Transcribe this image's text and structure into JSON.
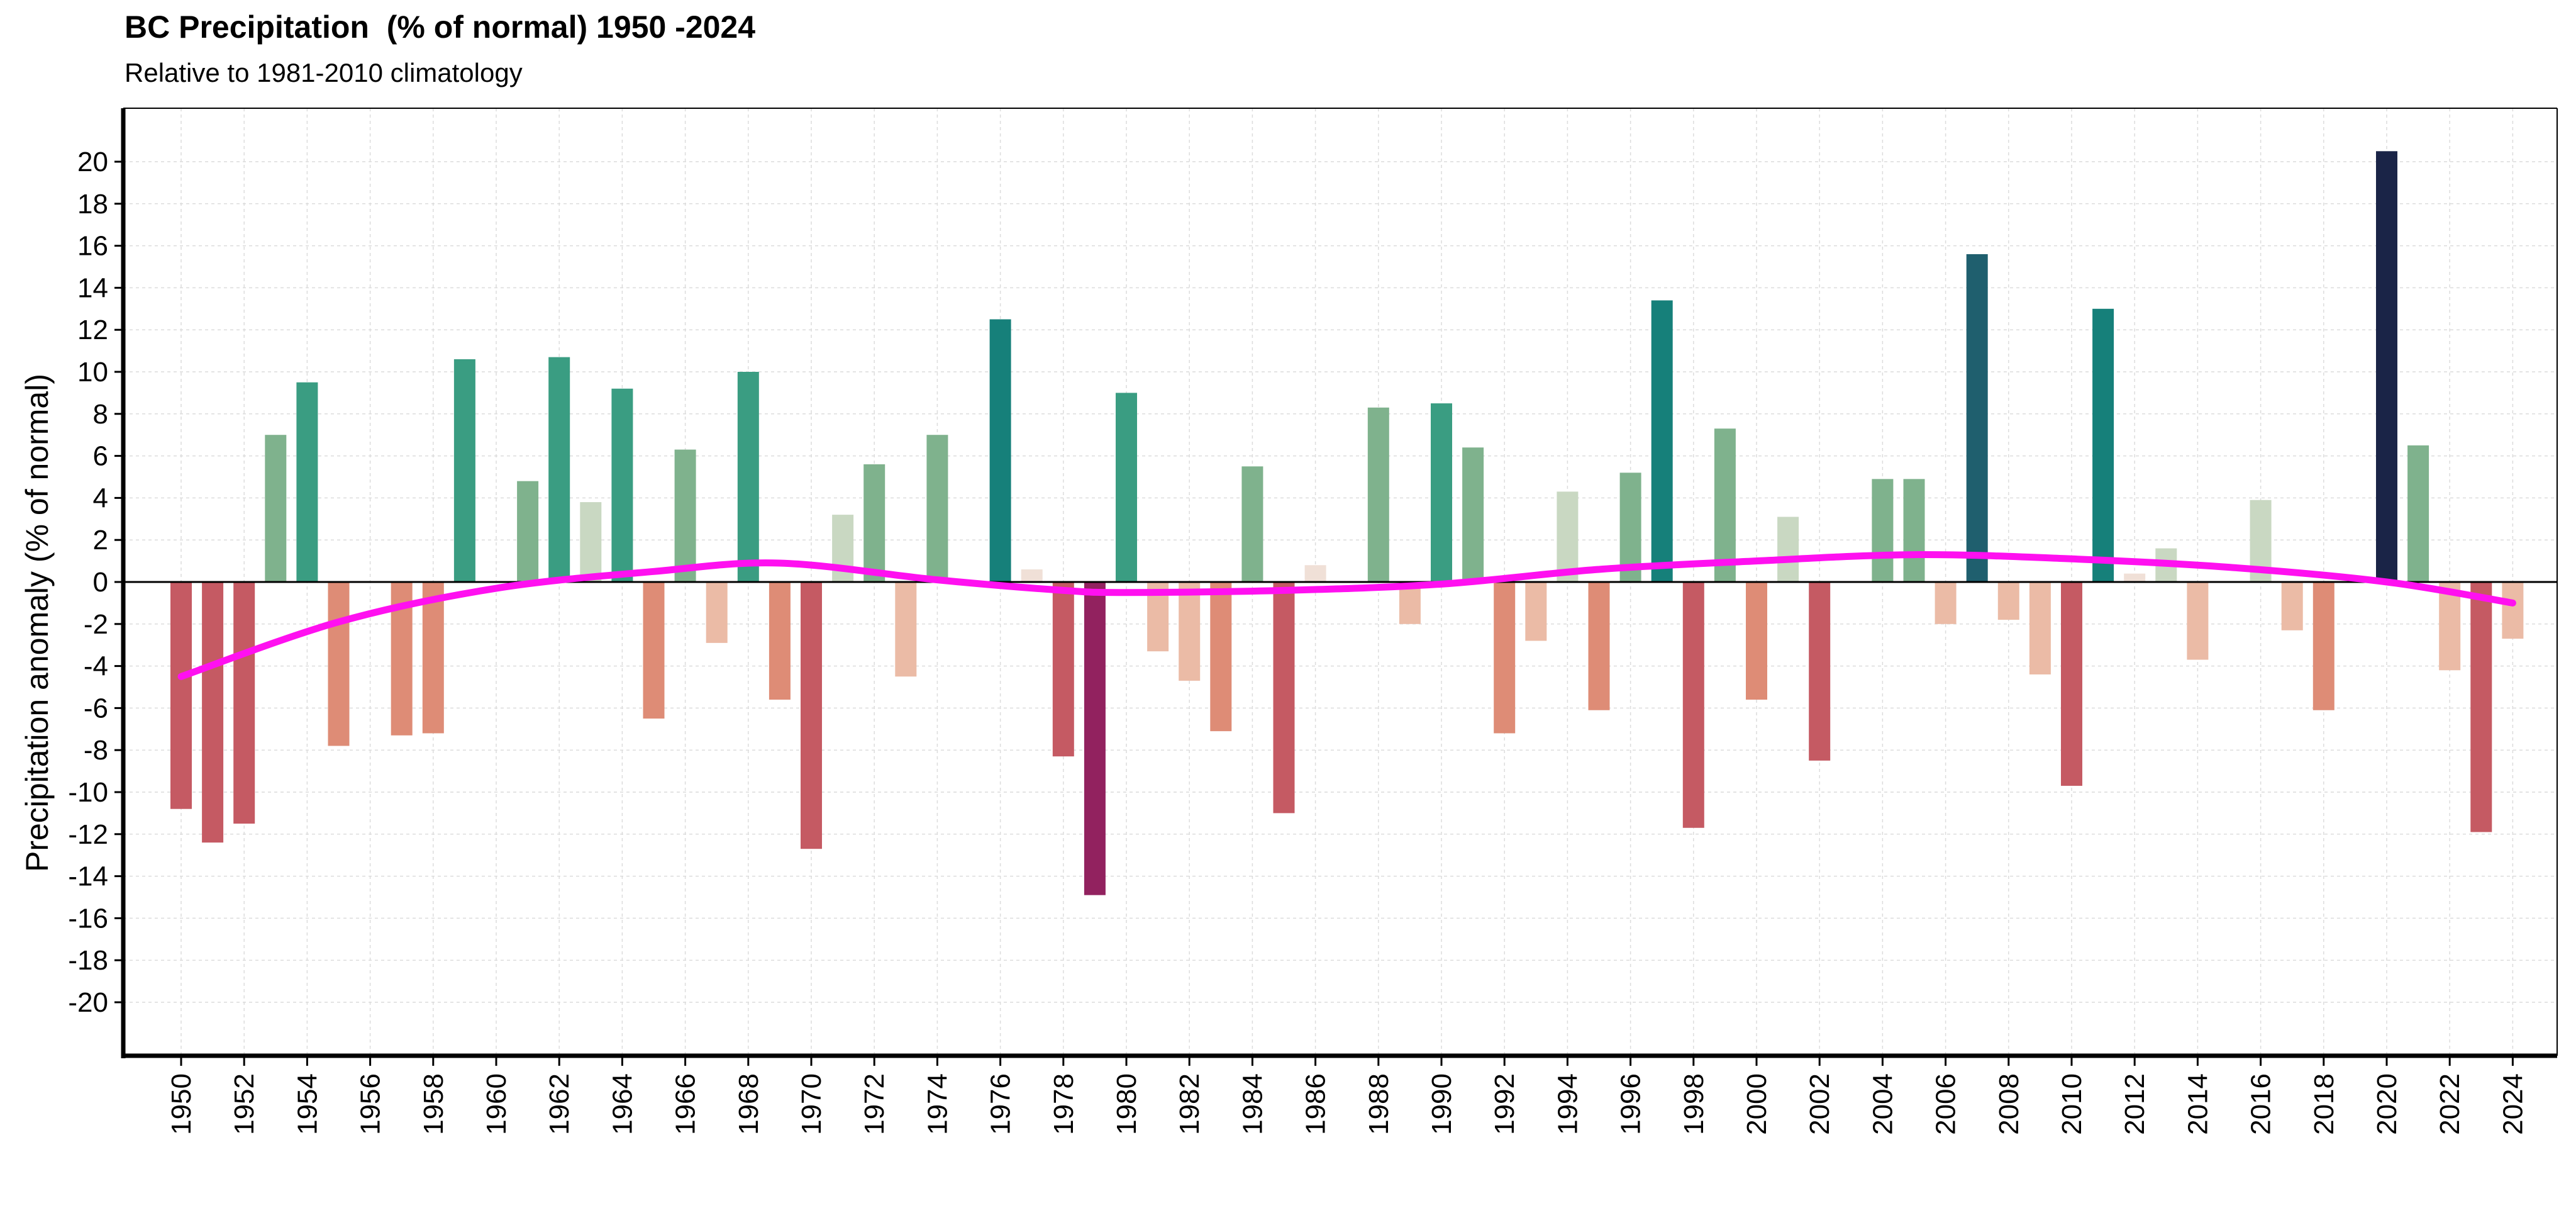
{
  "chart_data": {
    "type": "bar",
    "title": "BC Precipitation  (% of normal) 1950 -2024",
    "subtitle": "Relative to 1981-2010 climatology",
    "xlabel": "",
    "ylabel": "Precipitation anomaly (% of normal)",
    "ylim": [
      -22.5,
      22.5
    ],
    "yticks": [
      20,
      18,
      16,
      14,
      12,
      10,
      8,
      6,
      4,
      2,
      0,
      -2,
      -4,
      -6,
      -8,
      -10,
      -12,
      -14,
      -16,
      -18,
      -20
    ],
    "xticks": [
      1950,
      1952,
      1954,
      1956,
      1958,
      1960,
      1962,
      1964,
      1966,
      1968,
      1970,
      1972,
      1974,
      1976,
      1978,
      1980,
      1982,
      1984,
      1986,
      1988,
      1990,
      1992,
      1994,
      1996,
      1998,
      2000,
      2002,
      2004,
      2006,
      2008,
      2010,
      2012,
      2014,
      2016,
      2018,
      2020,
      2022,
      2024
    ],
    "grid": true,
    "legend": "none",
    "years": [
      1950,
      1951,
      1952,
      1953,
      1954,
      1955,
      1956,
      1957,
      1958,
      1959,
      1960,
      1961,
      1962,
      1963,
      1964,
      1965,
      1966,
      1967,
      1968,
      1969,
      1970,
      1971,
      1972,
      1973,
      1974,
      1975,
      1976,
      1977,
      1978,
      1979,
      1980,
      1981,
      1982,
      1983,
      1984,
      1985,
      1986,
      1987,
      1988,
      1989,
      1990,
      1991,
      1992,
      1993,
      1994,
      1995,
      1996,
      1997,
      1998,
      1999,
      2000,
      2001,
      2002,
      2003,
      2004,
      2005,
      2006,
      2007,
      2008,
      2009,
      2010,
      2011,
      2012,
      2013,
      2014,
      2015,
      2016,
      2017,
      2018,
      2019,
      2020,
      2021,
      2022,
      2023,
      2024
    ],
    "values": [
      -10.8,
      -12.4,
      -11.5,
      7.0,
      9.5,
      -7.8,
      0,
      -7.3,
      -7.2,
      10.6,
      0,
      4.8,
      10.7,
      3.8,
      9.2,
      -6.5,
      6.3,
      -2.9,
      10.0,
      -5.6,
      -12.7,
      3.2,
      5.6,
      -4.5,
      7.0,
      0,
      12.5,
      0.6,
      -8.3,
      -14.9,
      9.0,
      -3.3,
      -4.7,
      -7.1,
      5.5,
      -11.0,
      0.8,
      0,
      8.3,
      -2.0,
      8.5,
      6.4,
      -7.2,
      -2.8,
      4.3,
      -6.1,
      5.2,
      13.4,
      -11.7,
      7.3,
      -5.6,
      3.1,
      -8.5,
      0,
      4.9,
      4.9,
      -2.0,
      15.6,
      -1.8,
      -4.4,
      -9.7,
      13.0,
      0.4,
      1.6,
      -3.7,
      0,
      3.9,
      -2.3,
      -6.1,
      0,
      20.5,
      6.5,
      -4.2,
      -11.9,
      -2.7
    ],
    "trend": {
      "x": [
        1950,
        1955,
        1960,
        1965,
        1969,
        1974,
        1978,
        1980,
        1985,
        1990,
        1995,
        2000,
        2005,
        2010,
        2015,
        2020,
        2024
      ],
      "y": [
        -4.5,
        -1.9,
        -0.3,
        0.5,
        0.9,
        0.1,
        -0.4,
        -0.5,
        -0.4,
        -0.1,
        0.6,
        1.0,
        1.3,
        1.1,
        0.7,
        0.0,
        -1.0
      ],
      "color": "#ff10f0"
    },
    "colors": {
      "strong_positive": "#1a2447",
      "high_positive": "#1f5f6e",
      "positive": "#16807a",
      "moderate_positive": "#3a9d82",
      "mild_positive": "#7fb28d",
      "slight_positive": "#c9d8c2",
      "near_zero": "#f0e0d7",
      "slight_negative": "#ebbba6",
      "mild_negative": "#de8c76",
      "moderate_negative": "#c55a63",
      "strong_negative": "#92225f"
    }
  }
}
